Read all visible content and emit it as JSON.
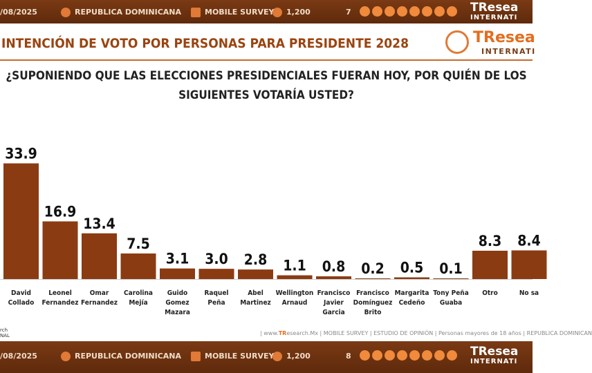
{
  "top_band": {
    "date": "/08/2025",
    "country": "REPUBLICA DOMINICANA",
    "survey": "MOBILE SURVEY",
    "sample": "1,200",
    "page": "7"
  },
  "bottom_band": {
    "date": "/08/2025",
    "country": "REPUBLICA DOMINICANA",
    "survey": "MOBILE SURVEY",
    "sample": "1,200",
    "page": "8"
  },
  "brand": {
    "name": "TResea",
    "sub": "INTERNATI"
  },
  "mini_brand": {
    "name": "TResea",
    "sub": "INTERNATI"
  },
  "footer": {
    "prefix": "| www.",
    "site_accent": "TR",
    "site_rest": "esearch.Mx | MOBILE SURVEY | ESTUDIO DE OPINIÓN | Personas mayores de 18 años | REPUBLICA DOMINICAN",
    "logo_line1": "rch",
    "logo_line2": "NAL"
  },
  "colors": {
    "bar": "#8b3b12",
    "accent": "#e46e1f",
    "band": "#6b300f"
  },
  "icons": [
    "location-icon",
    "phone-icon",
    "people-icon",
    "web-icon",
    "whatsapp-icon",
    "chat-icon",
    "mail-icon",
    "twitter-icon",
    "facebook-icon",
    "linkedin-icon",
    "youtube-icon"
  ],
  "chart_data": {
    "type": "bar",
    "title": "INTENCIÓN DE VOTO POR PERSONAS PARA PRESIDENTE 2028",
    "question_line1": "¿SUPONIENDO QUE LAS ELECCIONES PRESIDENCIALES FUERAN HOY, POR QUIÉN DE LOS",
    "question_line2": "SIGUIENTES VOTARÍA USTED?",
    "categories": [
      [
        "David",
        "Collado"
      ],
      [
        "Leonel",
        "Fernandez"
      ],
      [
        "Omar",
        "Fernandez"
      ],
      [
        "Carolina",
        "Mejía"
      ],
      [
        "Guido",
        "Gomez",
        "Mazara"
      ],
      [
        "Raquel",
        "Peña"
      ],
      [
        "Abel",
        "Martinez"
      ],
      [
        "Wellington",
        "Arnaud"
      ],
      [
        "Francisco",
        "Javier",
        "Garcia"
      ],
      [
        "Francisco",
        "Domínguez",
        "Brito"
      ],
      [
        "Margarita",
        "Cedeño"
      ],
      [
        "Tony Peña",
        "Guaba"
      ],
      [
        "Otro"
      ],
      [
        "No sa"
      ]
    ],
    "values": [
      33.9,
      16.9,
      13.4,
      7.5,
      3.1,
      3.0,
      2.8,
      1.1,
      0.8,
      0.2,
      0.5,
      0.1,
      8.3,
      8.4
    ],
    "labels": [
      "33.9",
      "16.9",
      "13.4",
      "7.5",
      "3.1",
      "3.0",
      "2.8",
      "1.1",
      "0.8",
      "0.2",
      "0.5",
      "0.1",
      "8.3",
      "8.4"
    ],
    "ylim": [
      0,
      34
    ],
    "grid": false,
    "legend": "none"
  }
}
